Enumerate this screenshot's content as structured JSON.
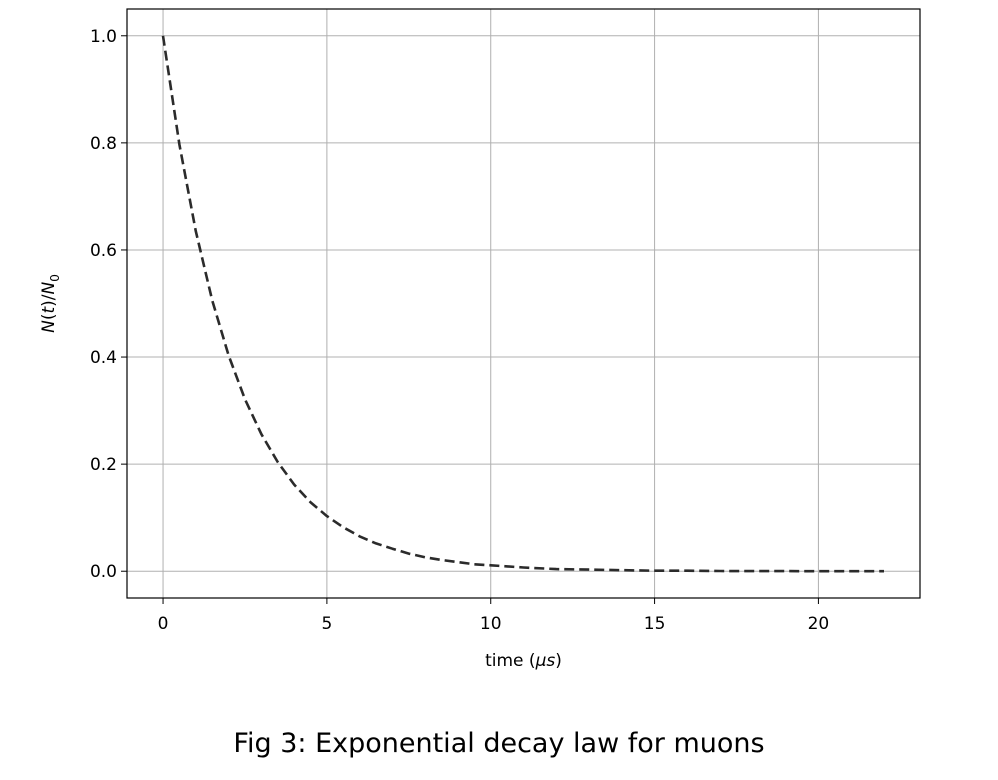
{
  "chart_data": {
    "type": "line",
    "xlabel": {
      "prefix": "time (",
      "math": "μs",
      "suffix": ")"
    },
    "ylabel": {
      "n1": "N",
      "mid": "(",
      "t": "t",
      "close": ")/",
      "n2": "N",
      "sub": "0"
    },
    "xlim": [
      -1.1,
      23.1
    ],
    "ylim": [
      -0.05,
      1.05
    ],
    "xticks": [
      0,
      5,
      10,
      15,
      20
    ],
    "xtick_labels": [
      "0",
      "5",
      "10",
      "15",
      "20"
    ],
    "yticks": [
      0.0,
      0.2,
      0.4,
      0.6,
      0.8,
      1.0
    ],
    "ytick_labels": [
      "0.0",
      "0.2",
      "0.4",
      "0.6",
      "0.8",
      "1.0"
    ],
    "grid": true,
    "legend": null,
    "series": [
      {
        "color": "#2b2b2b",
        "line_style": "dashed",
        "x": [
          0,
          0.5,
          1,
          1.5,
          2,
          2.5,
          3,
          3.5,
          4,
          4.5,
          5,
          5.5,
          6,
          6.5,
          7,
          7.5,
          8,
          8.5,
          9,
          9.5,
          10,
          11,
          12,
          13,
          14,
          15,
          16,
          17,
          18,
          19,
          20,
          21,
          22
        ],
        "y": [
          1.0,
          0.797,
          0.635,
          0.506,
          0.403,
          0.321,
          0.256,
          0.204,
          0.162,
          0.129,
          0.103,
          0.082,
          0.065,
          0.052,
          0.042,
          0.033,
          0.026,
          0.021,
          0.017,
          0.013,
          0.011,
          0.007,
          0.004,
          0.003,
          0.002,
          0.001,
          0.001,
          0.0004,
          0.0003,
          0.0002,
          0.0001,
          0.0001,
          0.0
        ]
      }
    ]
  },
  "caption": "Fig 3: Exponential decay law for muons"
}
